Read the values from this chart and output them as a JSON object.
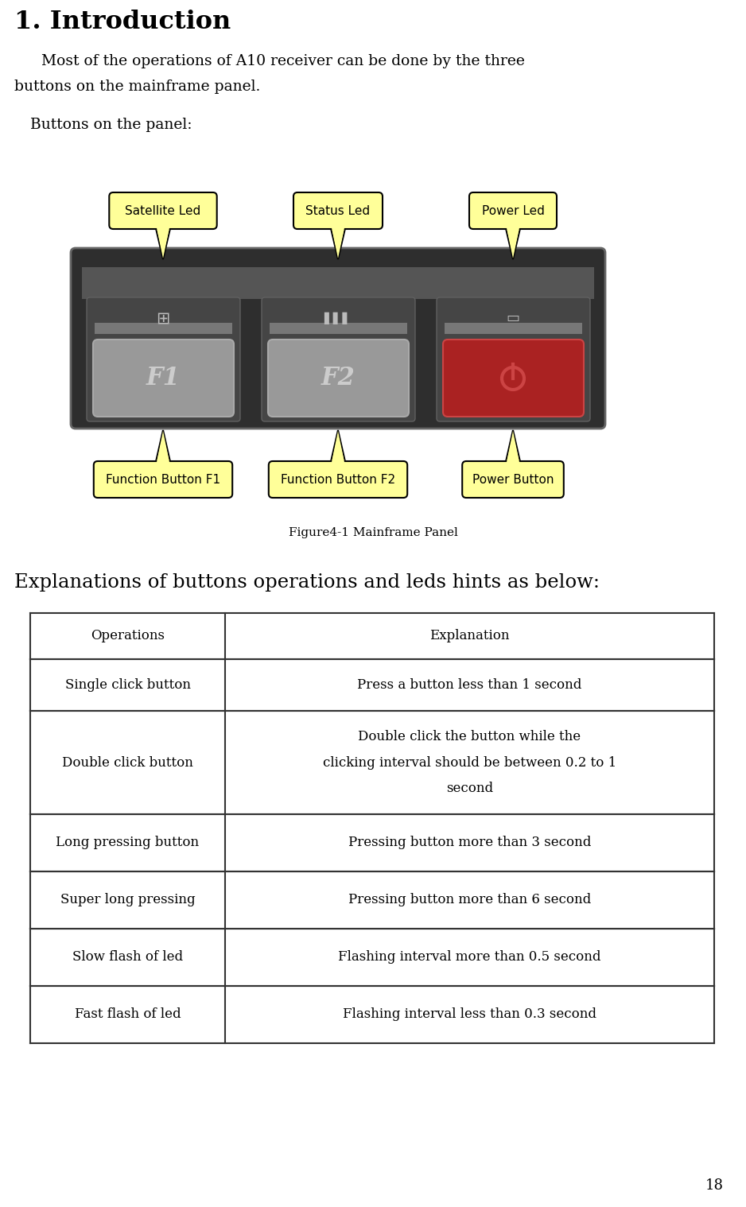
{
  "title": "1. Introduction",
  "intro_line1": "Most of the operations of A10 receiver can be done by the three",
  "intro_line2": "buttons on the mainframe panel.",
  "buttons_label": "Buttons on the panel:",
  "figure_caption": "Figure4-1 Mainframe Panel",
  "section_title": "Explanations of buttons operations and leds hints as below:",
  "table_headers": [
    "Operations",
    "Explanation"
  ],
  "table_rows": [
    [
      "Single click button",
      "Press a button less than 1 second"
    ],
    [
      "Double click button",
      "Double click the button while the\nclicking interval should be between 0.2 to 1\nsecond"
    ],
    [
      "Long pressing button",
      "Pressing button more than 3 second"
    ],
    [
      "Super long pressing",
      "Pressing button more than 6 second"
    ],
    [
      "Slow flash of led",
      "Flashing interval more than 0.5 second"
    ],
    [
      "Fast flash of led",
      "Flashing interval less than 0.3 second"
    ]
  ],
  "callout_top_labels": [
    "Satellite Led",
    "Status Led",
    "Power Led"
  ],
  "callout_bot_labels": [
    "Function Button F1",
    "Function Button F2",
    "Power Button"
  ],
  "callout_color": "#FFFF99",
  "callout_border": "#000000",
  "page_number": "18",
  "bg_color": "#ffffff",
  "text_color": "#000000",
  "table_border_color": "#333333",
  "panel_dark": "#2e2e2e",
  "panel_mid": "#4a4a4a",
  "panel_light": "#888888",
  "btn_grey": "#999999",
  "btn_red": "#aa2222"
}
